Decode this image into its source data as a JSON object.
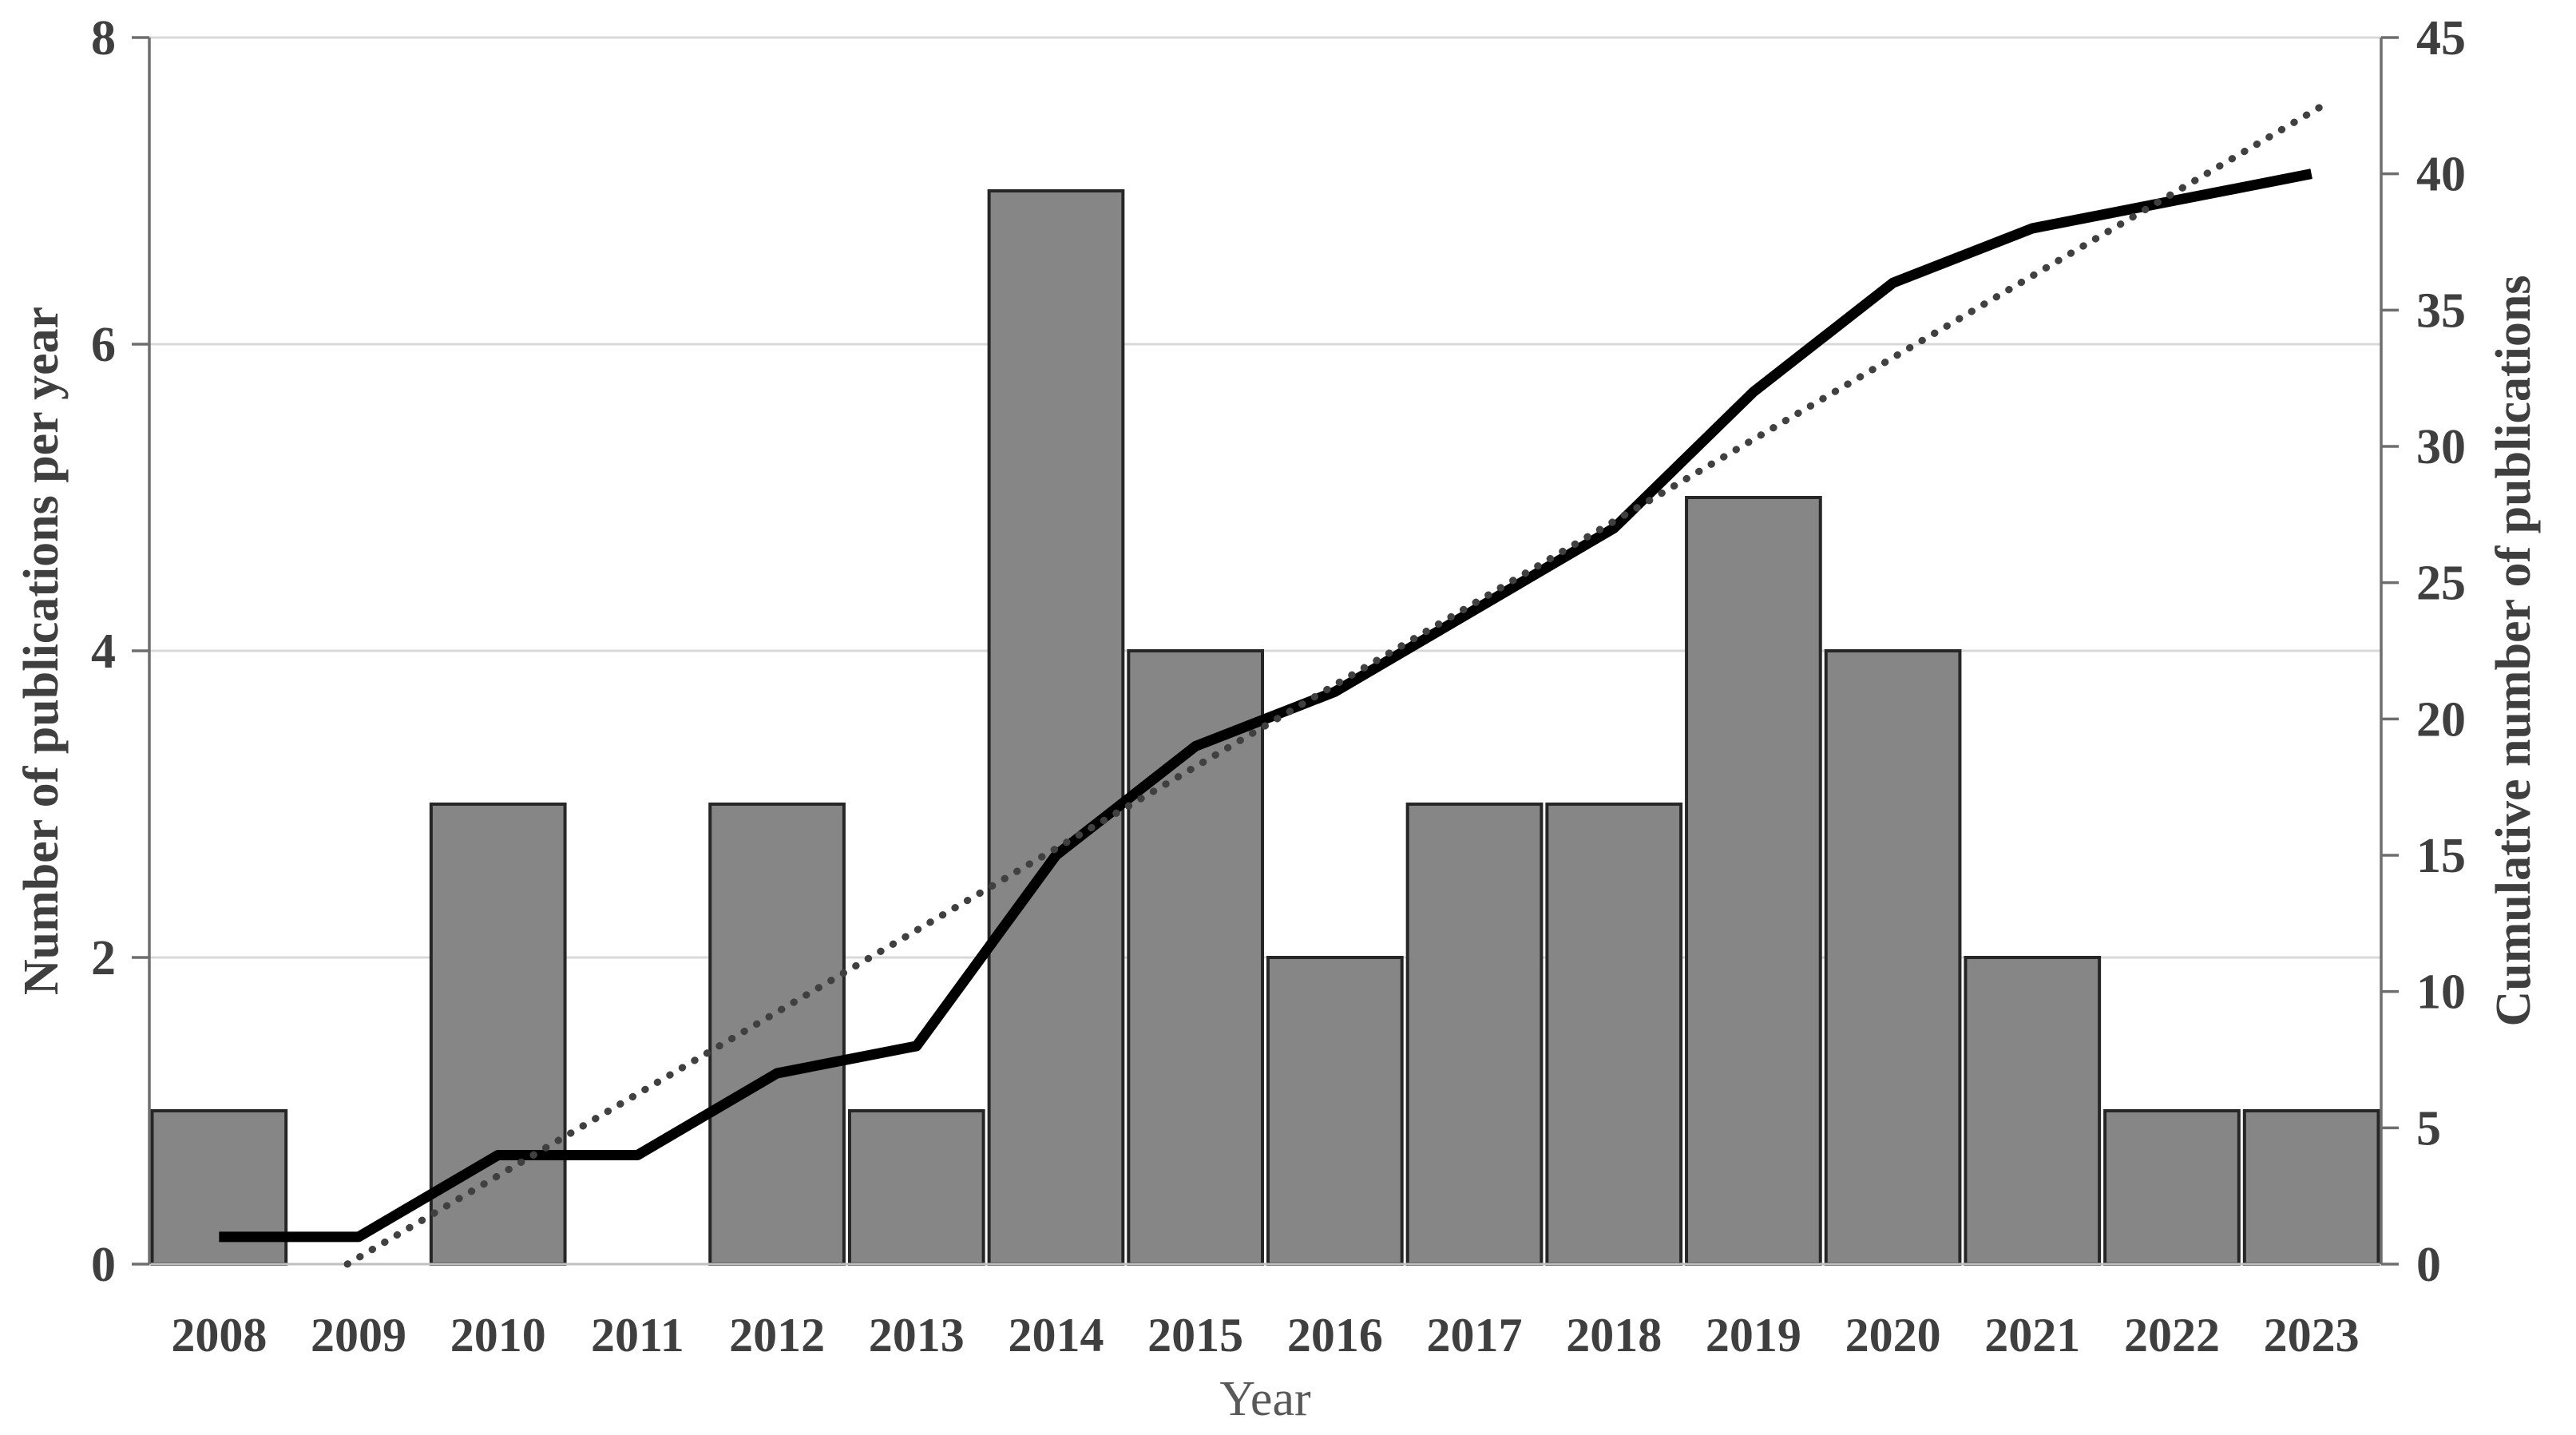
{
  "chart_data": {
    "type": "bar",
    "subtype": "combo-bar-line",
    "categories": [
      "2008",
      "2009",
      "2010",
      "2011",
      "2012",
      "2013",
      "2014",
      "2015",
      "2016",
      "2017",
      "2018",
      "2019",
      "2020",
      "2021",
      "2022",
      "2023"
    ],
    "series": [
      {
        "name": "Number of publications per year",
        "type": "bar",
        "axis": "left",
        "values": [
          1,
          0,
          3,
          0,
          3,
          1,
          7,
          4,
          2,
          3,
          3,
          5,
          4,
          2,
          1,
          1
        ],
        "fill_color": "#868686",
        "border_color": "#262626"
      },
      {
        "name": "Cumulative number of publications",
        "type": "line",
        "axis": "right",
        "values": [
          1,
          1,
          4,
          4,
          7,
          8,
          15,
          19,
          21,
          24,
          27,
          32,
          36,
          38,
          39,
          40
        ],
        "color": "#000000"
      }
    ],
    "trendline": {
      "style": "dotted",
      "axis": "right",
      "color": "#404040",
      "points": [
        {
          "year_index": 0.92,
          "value": 0
        },
        {
          "year_index": 15.08,
          "value": 42.5
        }
      ]
    },
    "left_axis": {
      "title": "Number of publications per year",
      "min": 0,
      "max": 8,
      "ticks": [
        "0",
        "2",
        "4",
        "6",
        "8"
      ]
    },
    "right_axis": {
      "title": "Cumulative number of publications",
      "min": 0,
      "max": 45,
      "ticks": [
        "0",
        "5",
        "10",
        "15",
        "20",
        "25",
        "30",
        "35",
        "40",
        "45"
      ]
    },
    "x_axis": {
      "title": "Year",
      "labels": [
        "2008",
        "2009",
        "2010",
        "2011",
        "2012",
        "2013",
        "2014",
        "2015",
        "2016",
        "2017",
        "2018",
        "2019",
        "2020",
        "2021",
        "2022",
        "2023"
      ]
    },
    "grid": "horizontal",
    "legend": "none",
    "colors": {
      "gridline": "#d9d9d9",
      "axis_line": "#6e6e6e",
      "baseline": "#bfbfbf",
      "tick_text": "#3f3f3f",
      "x_title_text": "#595959",
      "background": "#ffffff"
    }
  }
}
